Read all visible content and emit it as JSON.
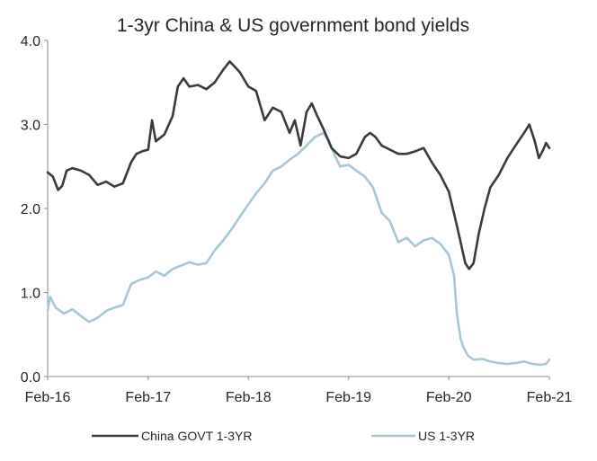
{
  "chart_data": {
    "type": "line",
    "title": "1-3yr China & US government bond yields",
    "xlabel": "",
    "ylabel": "",
    "ylim": [
      0,
      4
    ],
    "y_ticks": [
      0,
      1,
      2,
      3,
      4
    ],
    "y_tick_labels": [
      "0.0",
      "1.0",
      "2.0",
      "3.0",
      "4.0"
    ],
    "x_range": [
      "2016-02-01",
      "2021-02-01"
    ],
    "x_ticks": [
      "2016-02-01",
      "2017-02-01",
      "2018-02-01",
      "2019-02-01",
      "2020-02-01",
      "2021-02-01"
    ],
    "x_tick_labels": [
      "Feb-16",
      "Feb-17",
      "Feb-18",
      "Feb-19",
      "Feb-20",
      "Feb-21"
    ],
    "grid": false,
    "legend_position": "bottom",
    "series": [
      {
        "name": "China GOVT 1-3YR",
        "color": "#3a3a3a",
        "points": [
          [
            "2016-02-01",
            2.43
          ],
          [
            "2016-02-20",
            2.38
          ],
          [
            "2016-03-10",
            2.22
          ],
          [
            "2016-03-25",
            2.27
          ],
          [
            "2016-04-10",
            2.45
          ],
          [
            "2016-05-01",
            2.48
          ],
          [
            "2016-06-01",
            2.45
          ],
          [
            "2016-07-01",
            2.4
          ],
          [
            "2016-08-01",
            2.28
          ],
          [
            "2016-09-01",
            2.32
          ],
          [
            "2016-10-01",
            2.26
          ],
          [
            "2016-11-01",
            2.3
          ],
          [
            "2016-12-01",
            2.55
          ],
          [
            "2016-12-20",
            2.65
          ],
          [
            "2017-01-10",
            2.68
          ],
          [
            "2017-02-01",
            2.7
          ],
          [
            "2017-02-15",
            3.05
          ],
          [
            "2017-03-01",
            2.8
          ],
          [
            "2017-04-01",
            2.88
          ],
          [
            "2017-05-01",
            3.1
          ],
          [
            "2017-05-20",
            3.45
          ],
          [
            "2017-06-10",
            3.55
          ],
          [
            "2017-07-01",
            3.45
          ],
          [
            "2017-08-01",
            3.47
          ],
          [
            "2017-09-01",
            3.42
          ],
          [
            "2017-10-01",
            3.5
          ],
          [
            "2017-11-01",
            3.65
          ],
          [
            "2017-11-25",
            3.75
          ],
          [
            "2017-12-10",
            3.7
          ],
          [
            "2018-01-01",
            3.62
          ],
          [
            "2018-02-01",
            3.45
          ],
          [
            "2018-03-01",
            3.4
          ],
          [
            "2018-04-01",
            3.05
          ],
          [
            "2018-05-01",
            3.2
          ],
          [
            "2018-06-01",
            3.15
          ],
          [
            "2018-07-01",
            2.9
          ],
          [
            "2018-07-20",
            3.05
          ],
          [
            "2018-08-10",
            2.75
          ],
          [
            "2018-09-01",
            3.15
          ],
          [
            "2018-09-20",
            3.25
          ],
          [
            "2018-10-10",
            3.1
          ],
          [
            "2018-11-01",
            2.95
          ],
          [
            "2018-12-01",
            2.72
          ],
          [
            "2019-01-01",
            2.62
          ],
          [
            "2019-02-01",
            2.6
          ],
          [
            "2019-03-01",
            2.65
          ],
          [
            "2019-04-01",
            2.85
          ],
          [
            "2019-04-20",
            2.9
          ],
          [
            "2019-05-10",
            2.85
          ],
          [
            "2019-06-01",
            2.75
          ],
          [
            "2019-07-01",
            2.7
          ],
          [
            "2019-08-01",
            2.65
          ],
          [
            "2019-09-01",
            2.65
          ],
          [
            "2019-10-01",
            2.68
          ],
          [
            "2019-11-01",
            2.72
          ],
          [
            "2019-12-01",
            2.55
          ],
          [
            "2020-01-01",
            2.4
          ],
          [
            "2020-02-01",
            2.2
          ],
          [
            "2020-03-01",
            1.8
          ],
          [
            "2020-03-15",
            1.6
          ],
          [
            "2020-04-01",
            1.35
          ],
          [
            "2020-04-15",
            1.28
          ],
          [
            "2020-05-01",
            1.35
          ],
          [
            "2020-05-20",
            1.7
          ],
          [
            "2020-06-10",
            2.0
          ],
          [
            "2020-07-01",
            2.25
          ],
          [
            "2020-08-01",
            2.4
          ],
          [
            "2020-09-01",
            2.6
          ],
          [
            "2020-10-01",
            2.75
          ],
          [
            "2020-11-01",
            2.9
          ],
          [
            "2020-11-20",
            3.0
          ],
          [
            "2020-12-10",
            2.8
          ],
          [
            "2020-12-25",
            2.6
          ],
          [
            "2021-01-10",
            2.7
          ],
          [
            "2021-01-20",
            2.78
          ],
          [
            "2021-02-01",
            2.72
          ]
        ]
      },
      {
        "name": "US 1-3YR",
        "color": "#a7c7d7",
        "points": [
          [
            "2016-02-01",
            0.78
          ],
          [
            "2016-02-10",
            0.95
          ],
          [
            "2016-03-01",
            0.82
          ],
          [
            "2016-04-01",
            0.75
          ],
          [
            "2016-05-01",
            0.8
          ],
          [
            "2016-06-01",
            0.72
          ],
          [
            "2016-07-01",
            0.65
          ],
          [
            "2016-08-01",
            0.7
          ],
          [
            "2016-09-01",
            0.78
          ],
          [
            "2016-10-01",
            0.82
          ],
          [
            "2016-11-01",
            0.85
          ],
          [
            "2016-12-01",
            1.1
          ],
          [
            "2017-01-01",
            1.15
          ],
          [
            "2017-02-01",
            1.18
          ],
          [
            "2017-03-01",
            1.25
          ],
          [
            "2017-04-01",
            1.2
          ],
          [
            "2017-05-01",
            1.28
          ],
          [
            "2017-06-01",
            1.32
          ],
          [
            "2017-07-01",
            1.36
          ],
          [
            "2017-08-01",
            1.33
          ],
          [
            "2017-09-01",
            1.35
          ],
          [
            "2017-10-01",
            1.5
          ],
          [
            "2017-11-01",
            1.62
          ],
          [
            "2017-12-01",
            1.75
          ],
          [
            "2018-01-01",
            1.9
          ],
          [
            "2018-02-01",
            2.05
          ],
          [
            "2018-03-01",
            2.18
          ],
          [
            "2018-04-01",
            2.3
          ],
          [
            "2018-05-01",
            2.45
          ],
          [
            "2018-06-01",
            2.5
          ],
          [
            "2018-07-01",
            2.58
          ],
          [
            "2018-08-01",
            2.65
          ],
          [
            "2018-09-01",
            2.75
          ],
          [
            "2018-10-01",
            2.85
          ],
          [
            "2018-11-01",
            2.9
          ],
          [
            "2018-11-20",
            2.82
          ],
          [
            "2018-12-10",
            2.65
          ],
          [
            "2019-01-01",
            2.5
          ],
          [
            "2019-02-01",
            2.52
          ],
          [
            "2019-03-01",
            2.45
          ],
          [
            "2019-04-01",
            2.38
          ],
          [
            "2019-05-01",
            2.25
          ],
          [
            "2019-06-01",
            1.95
          ],
          [
            "2019-07-01",
            1.85
          ],
          [
            "2019-08-01",
            1.6
          ],
          [
            "2019-09-01",
            1.65
          ],
          [
            "2019-10-01",
            1.55
          ],
          [
            "2019-11-01",
            1.62
          ],
          [
            "2019-12-01",
            1.65
          ],
          [
            "2020-01-01",
            1.58
          ],
          [
            "2020-02-01",
            1.45
          ],
          [
            "2020-02-20",
            1.2
          ],
          [
            "2020-03-01",
            0.75
          ],
          [
            "2020-03-15",
            0.45
          ],
          [
            "2020-03-25",
            0.35
          ],
          [
            "2020-04-10",
            0.25
          ],
          [
            "2020-05-01",
            0.2
          ],
          [
            "2020-06-01",
            0.21
          ],
          [
            "2020-07-01",
            0.18
          ],
          [
            "2020-08-01",
            0.16
          ],
          [
            "2020-09-01",
            0.15
          ],
          [
            "2020-10-01",
            0.16
          ],
          [
            "2020-11-01",
            0.18
          ],
          [
            "2020-12-01",
            0.15
          ],
          [
            "2021-01-01",
            0.14
          ],
          [
            "2021-01-20",
            0.15
          ],
          [
            "2021-02-01",
            0.2
          ]
        ]
      }
    ]
  }
}
